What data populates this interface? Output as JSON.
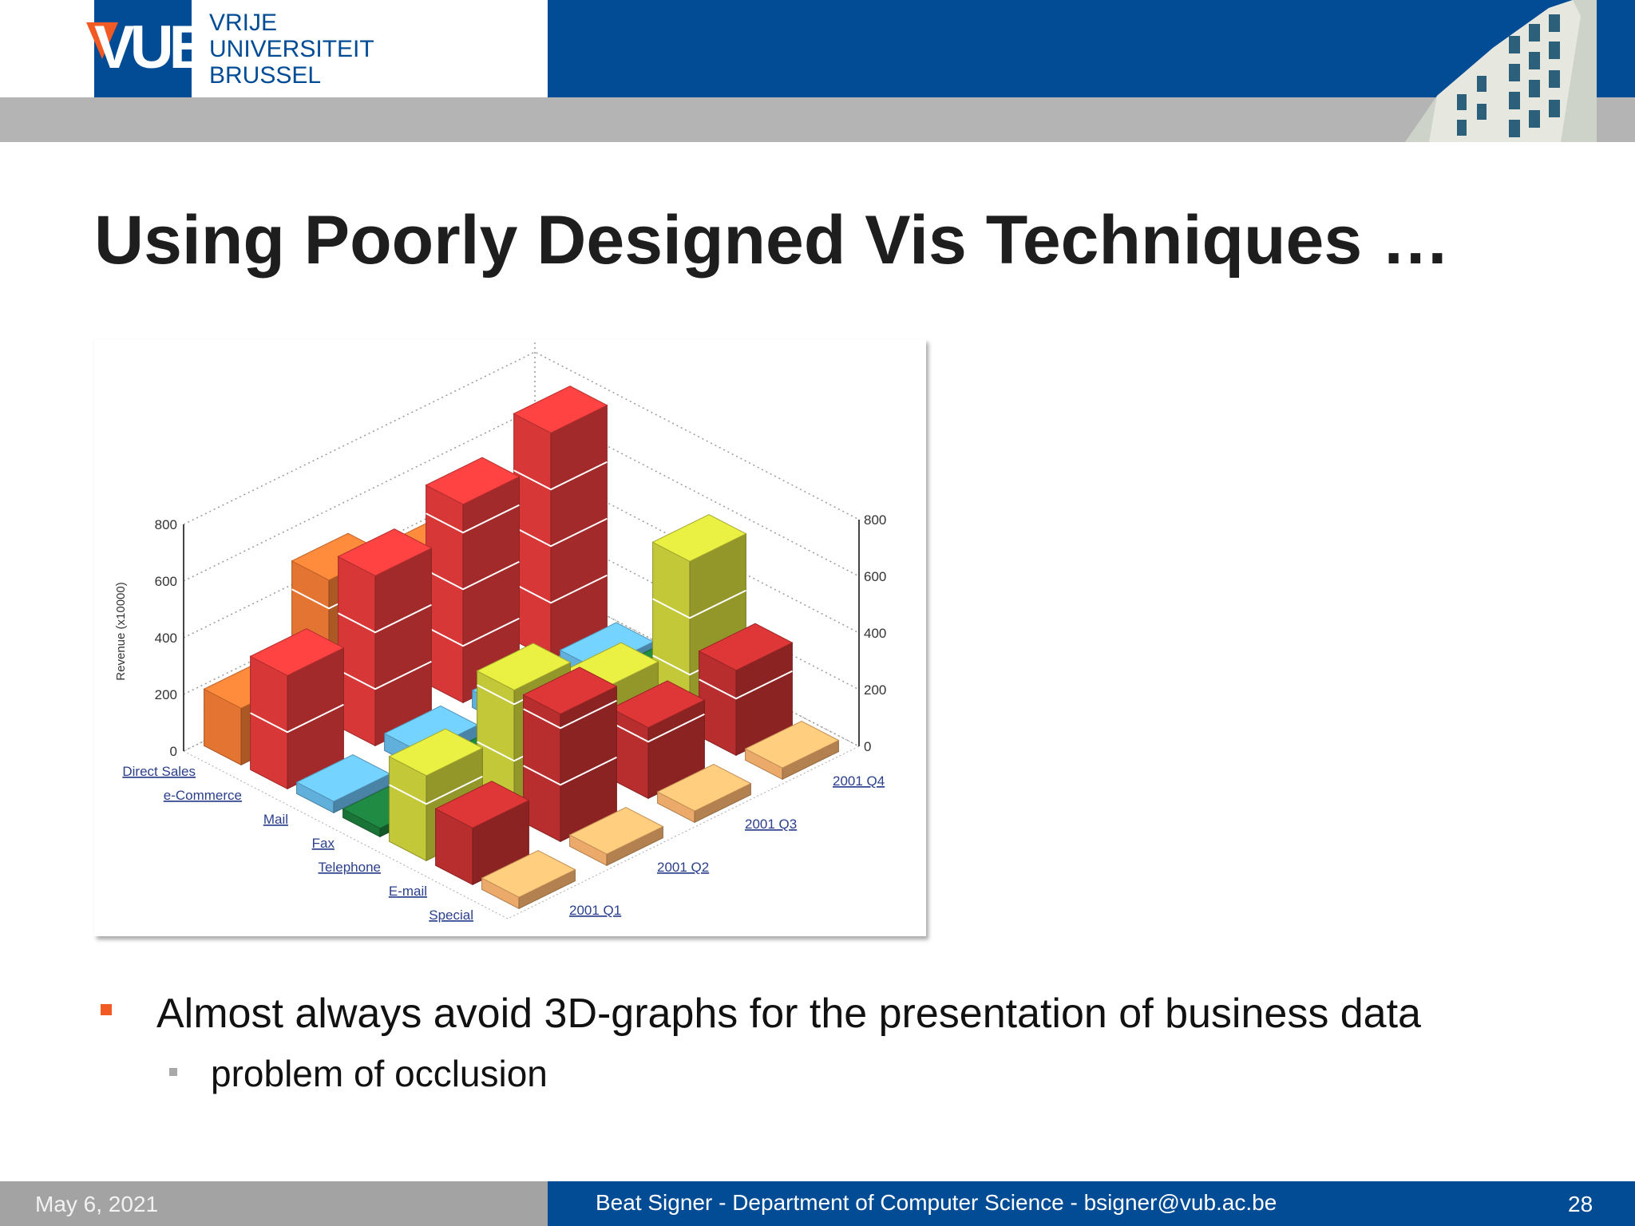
{
  "header": {
    "logo": "VUB",
    "university_lines": [
      "VRIJE",
      "UNIVERSITEIT",
      "BRUSSEL"
    ]
  },
  "slide": {
    "title": "Using Poorly Designed Vis Techniques …",
    "bullets": [
      {
        "level": 1,
        "text": "Almost always avoid 3D-graphs for the presentation of business data"
      },
      {
        "level": 2,
        "text": "problem of occlusion"
      }
    ]
  },
  "chart_data": {
    "type": "bar",
    "variant": "3d",
    "ylabel": "Revenue (x10000)",
    "ylim": [
      0,
      800
    ],
    "yticks": [
      0,
      200,
      400,
      600,
      800
    ],
    "categories": [
      "Direct Sales",
      "e-Commerce",
      "Mail",
      "Fax",
      "Telephone",
      "E-mail",
      "Special"
    ],
    "quarters": [
      "2001 Q1",
      "2001 Q2",
      "2001 Q3",
      "2001 Q4"
    ],
    "series": [
      {
        "quarter": "2001 Q1",
        "values": [
          200,
          400,
          40,
          30,
          300,
          200,
          40
        ]
      },
      {
        "quarter": "2001 Q2",
        "values": [
          500,
          600,
          60,
          50,
          450,
          450,
          40
        ]
      },
      {
        "quarter": "2001 Q3",
        "values": [
          400,
          700,
          60,
          80,
          300,
          250,
          40
        ]
      },
      {
        "quarter": "2001 Q4",
        "values": [
          200,
          800,
          50,
          60,
          600,
          300,
          40
        ]
      }
    ],
    "colors": {
      "Direct Sales": "#ef7a34",
      "e-Commerce": "#e23a3a",
      "Mail": "#66b8e6",
      "Fax": "#1c7a3a",
      "Telephone": "#ccd23a",
      "E-mail": "#c23030",
      "Special": "#f7b36e"
    }
  },
  "footer": {
    "date": "May 6, 2021",
    "center": "Beat Signer - Department of Computer Science - bsigner@vub.ac.be",
    "page": "28"
  }
}
